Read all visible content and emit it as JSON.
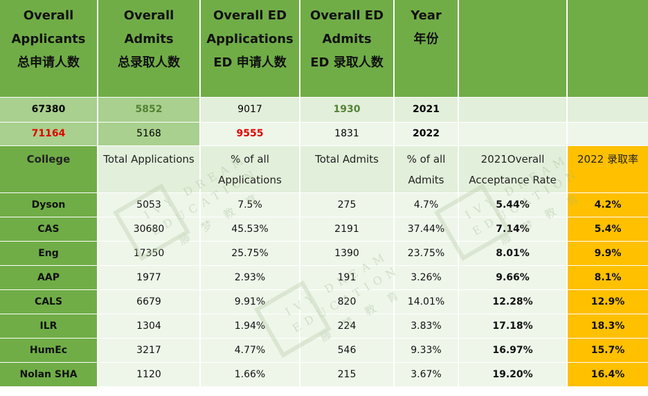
{
  "header": {
    "col1": [
      "Overall",
      "Applicants",
      "总申请人数"
    ],
    "col2": [
      "Overall",
      "Admits",
      "总录取人数"
    ],
    "col3": [
      "Overall ED",
      "Applications",
      "ED 申请人数"
    ],
    "col4": [
      "Overall ED",
      "Admits",
      "ED 录取人数"
    ],
    "col5": [
      "Year",
      "年份"
    ]
  },
  "summary": [
    {
      "applicants": "67380",
      "admits": "5852",
      "ed_applications": "9017",
      "ed_admits": "1930",
      "year": "2021"
    },
    {
      "applicants": "71164",
      "admits": "5168",
      "ed_applications": "9555",
      "ed_admits": "1831",
      "year": "2022"
    }
  ],
  "subheader": {
    "college": "College",
    "total_applications": "Total Applications",
    "pct_applications": [
      "% of all",
      "Applications"
    ],
    "total_admits": "Total Admits",
    "pct_admits": [
      "% of all",
      "Admits"
    ],
    "rate_2021": [
      "2021Overall",
      "Acceptance Rate"
    ],
    "rate_2022": "2022 录取率"
  },
  "rows": [
    {
      "college": "Dyson",
      "apps": "5053",
      "pct_apps": "7.5%",
      "admits": "275",
      "pct_admits": "4.7%",
      "rate2021": "5.44%",
      "rate2022": "4.2%"
    },
    {
      "college": "CAS",
      "apps": "30680",
      "pct_apps": "45.53%",
      "admits": "2191",
      "pct_admits": "37.44%",
      "rate2021": "7.14%",
      "rate2022": "5.4%"
    },
    {
      "college": "Eng",
      "apps": "17350",
      "pct_apps": "25.75%",
      "admits": "1390",
      "pct_admits": "23.75%",
      "rate2021": "8.01%",
      "rate2022": "9.9%"
    },
    {
      "college": "AAP",
      "apps": "1977",
      "pct_apps": "2.93%",
      "admits": "191",
      "pct_admits": "3.26%",
      "rate2021": "9.66%",
      "rate2022": "8.1%"
    },
    {
      "college": "CALS",
      "apps": "6679",
      "pct_apps": "9.91%",
      "admits": "820",
      "pct_admits": "14.01%",
      "rate2021": "12.28%",
      "rate2022": "12.9%"
    },
    {
      "college": "ILR",
      "apps": "1304",
      "pct_apps": "1.94%",
      "admits": "224",
      "pct_admits": "3.83%",
      "rate2021": "17.18%",
      "rate2022": "18.3%"
    },
    {
      "college": "HumEc",
      "apps": "3217",
      "pct_apps": "4.77%",
      "admits": "546",
      "pct_admits": "9.33%",
      "rate2021": "16.97%",
      "rate2022": "15.7%"
    },
    {
      "college": "Nolan SHA",
      "apps": "1120",
      "pct_apps": "1.66%",
      "admits": "215",
      "pct_admits": "3.67%",
      "rate2021": "19.20%",
      "rate2022": "16.4%"
    }
  ],
  "watermark": {
    "line1": "IVY DREAM",
    "line2": "EDUCATION",
    "cn": "藤 梦 教 育"
  },
  "colors": {
    "dark_green": "#70ad47",
    "mid_green": "#a9d08e",
    "light_green": "#e2efda",
    "orange": "#ffc000",
    "red": "#e00000",
    "text_green": "#548235"
  }
}
